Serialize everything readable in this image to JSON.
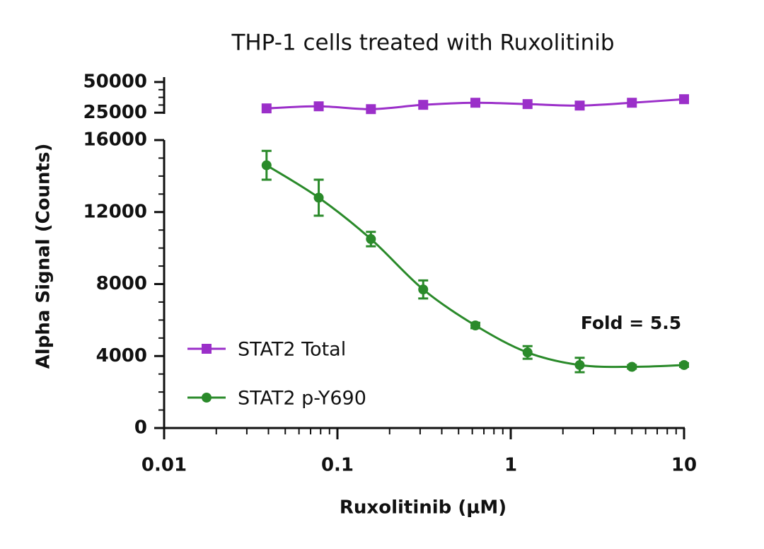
{
  "chart_data": {
    "type": "line",
    "title": "THP-1 cells treated with Ruxolitinib",
    "x_label": "Ruxolitinib (µM)",
    "y_label": "Alpha Signal (Counts)",
    "x_scale": "log",
    "x": [
      0.039,
      0.078,
      0.156,
      0.3125,
      0.625,
      1.25,
      2.5,
      5,
      10
    ],
    "xlim": [
      0.01,
      10
    ],
    "xticks": [
      0.01,
      0.1,
      1,
      10
    ],
    "ylim": [
      0,
      16000
    ],
    "yticks": [
      0,
      4000,
      8000,
      12000,
      16000
    ],
    "y2lim": [
      24000,
      54000
    ],
    "y2ticks": [
      25000,
      50000
    ],
    "legend": "lower left",
    "series": [
      {
        "name": "STAT2 Total",
        "color": "#9b2fc9",
        "marker": "square",
        "axis": "y2",
        "values": [
          28500,
          30200,
          27900,
          31400,
          33100,
          32000,
          30800,
          33100,
          36000
        ]
      },
      {
        "name": "STAT2 p-Y690",
        "color": "#2a8a2a",
        "marker": "circle",
        "values": [
          14600,
          12800,
          10500,
          7700,
          5700,
          4200,
          3500,
          3400,
          3500
        ],
        "errors": [
          800,
          1000,
          400,
          500,
          150,
          350,
          400,
          100,
          100
        ]
      }
    ],
    "annotation": {
      "text": "Fold = 5.5",
      "color": "#2a8a2a"
    }
  }
}
